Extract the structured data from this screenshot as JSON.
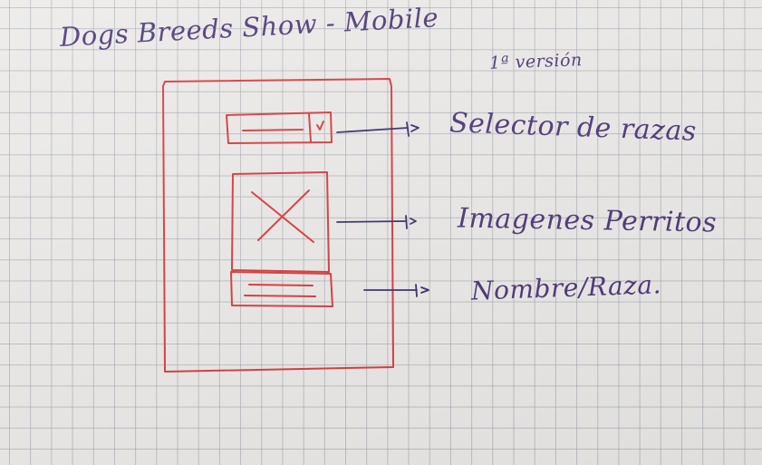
{
  "sketch": {
    "title": "Dogs Breeds Show - Mobile",
    "version": "1ª versión",
    "annotations": [
      {
        "id": "selector",
        "label": "Selector de razas"
      },
      {
        "id": "images",
        "label": "Imagenes Perritos"
      },
      {
        "id": "name",
        "label": "Nombre/Raza."
      }
    ],
    "colors": {
      "wireframe_ink": "#d8383a",
      "annotation_ink": "#4a3576",
      "grid_line": "#969ba5",
      "paper": "#eceae8"
    }
  }
}
